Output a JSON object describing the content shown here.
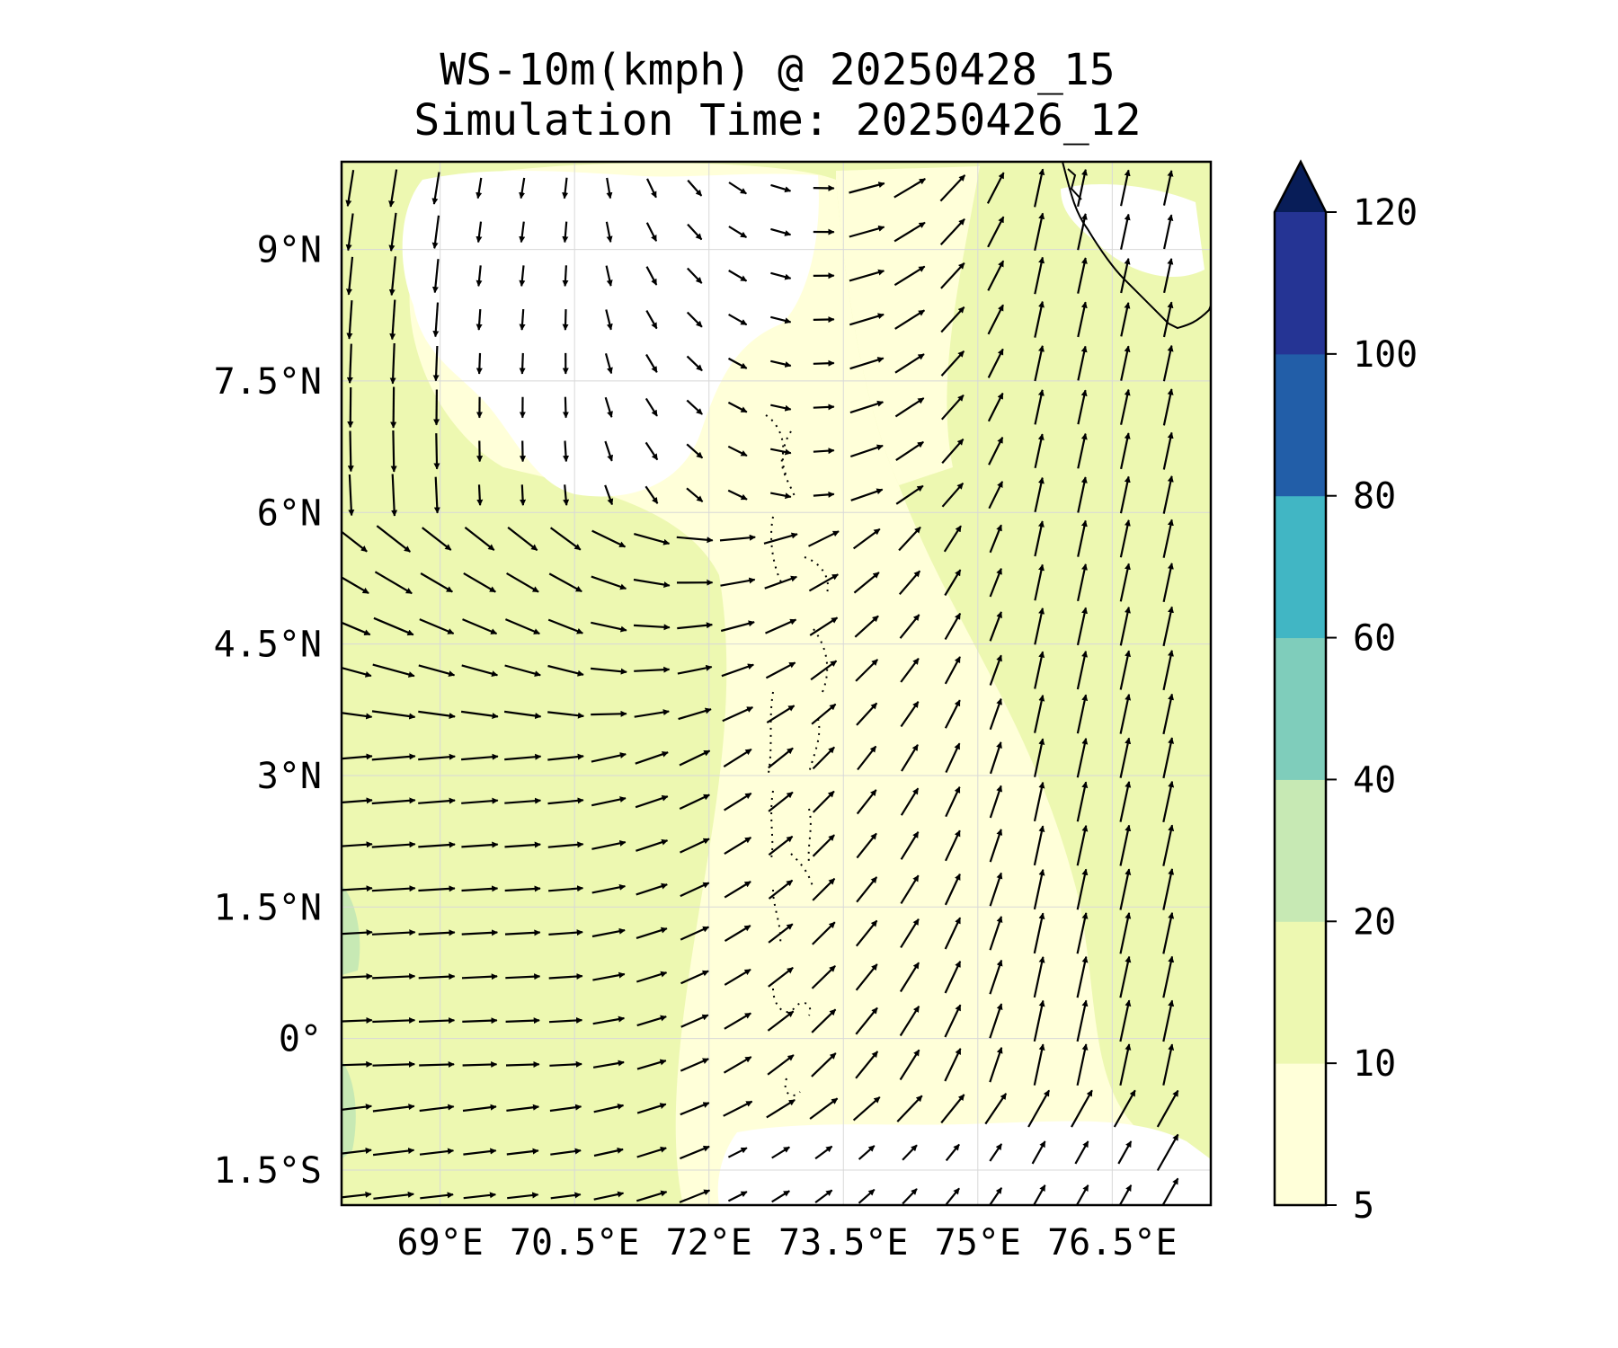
{
  "title": {
    "line1": "WS-10m(kmph) @ 20250428_15",
    "line2": "Simulation Time: 20250426_12"
  },
  "map": {
    "extent": {
      "lon_min": 67.9,
      "lon_max": 77.6,
      "lat_min": -1.9,
      "lat_max": 10.0
    },
    "lat_ticks": [
      {
        "value": 9,
        "label": "9°N"
      },
      {
        "value": 7.5,
        "label": "7.5°N"
      },
      {
        "value": 6,
        "label": "6°N"
      },
      {
        "value": 4.5,
        "label": "4.5°N"
      },
      {
        "value": 3,
        "label": "3°N"
      },
      {
        "value": 1.5,
        "label": "1.5°N"
      },
      {
        "value": 0,
        "label": "0°"
      },
      {
        "value": -1.5,
        "label": "1.5°S"
      }
    ],
    "lon_ticks": [
      {
        "value": 69,
        "label": "69°E"
      },
      {
        "value": 70.5,
        "label": "70.5°E"
      },
      {
        "value": 72,
        "label": "72°E"
      },
      {
        "value": 73.5,
        "label": "73.5°E"
      },
      {
        "value": 75,
        "label": "75°E"
      },
      {
        "value": 76.5,
        "label": "76.5°E"
      }
    ],
    "gridlines": true,
    "fill_colors": {
      "calm": "#ffffff",
      "band_5_10": "#ffffd9",
      "band_10_20": "#edf8b1",
      "band_20_40": "#c7e9b4"
    },
    "coastline_color": "#000000"
  },
  "colorbar": {
    "levels": [
      {
        "value": 5,
        "label": "5"
      },
      {
        "value": 10,
        "label": "10"
      },
      {
        "value": 20,
        "label": "20"
      },
      {
        "value": 40,
        "label": "40"
      },
      {
        "value": 60,
        "label": "60"
      },
      {
        "value": 80,
        "label": "80"
      },
      {
        "value": 100,
        "label": "100"
      },
      {
        "value": 120,
        "label": "120"
      }
    ],
    "colors": [
      "#ffffd9",
      "#edf8b1",
      "#c7e9b4",
      "#7fcdbb",
      "#41b6c4",
      "#225ea8",
      "#253494",
      "#081d58"
    ],
    "extend": "max"
  },
  "quiver": {
    "arrow_color": "#000000",
    "lat_start": 9.7,
    "lat_step": -0.5,
    "rows": 24,
    "lon_start": 68.0,
    "lon_step": 0.48,
    "cols": 20
  }
}
